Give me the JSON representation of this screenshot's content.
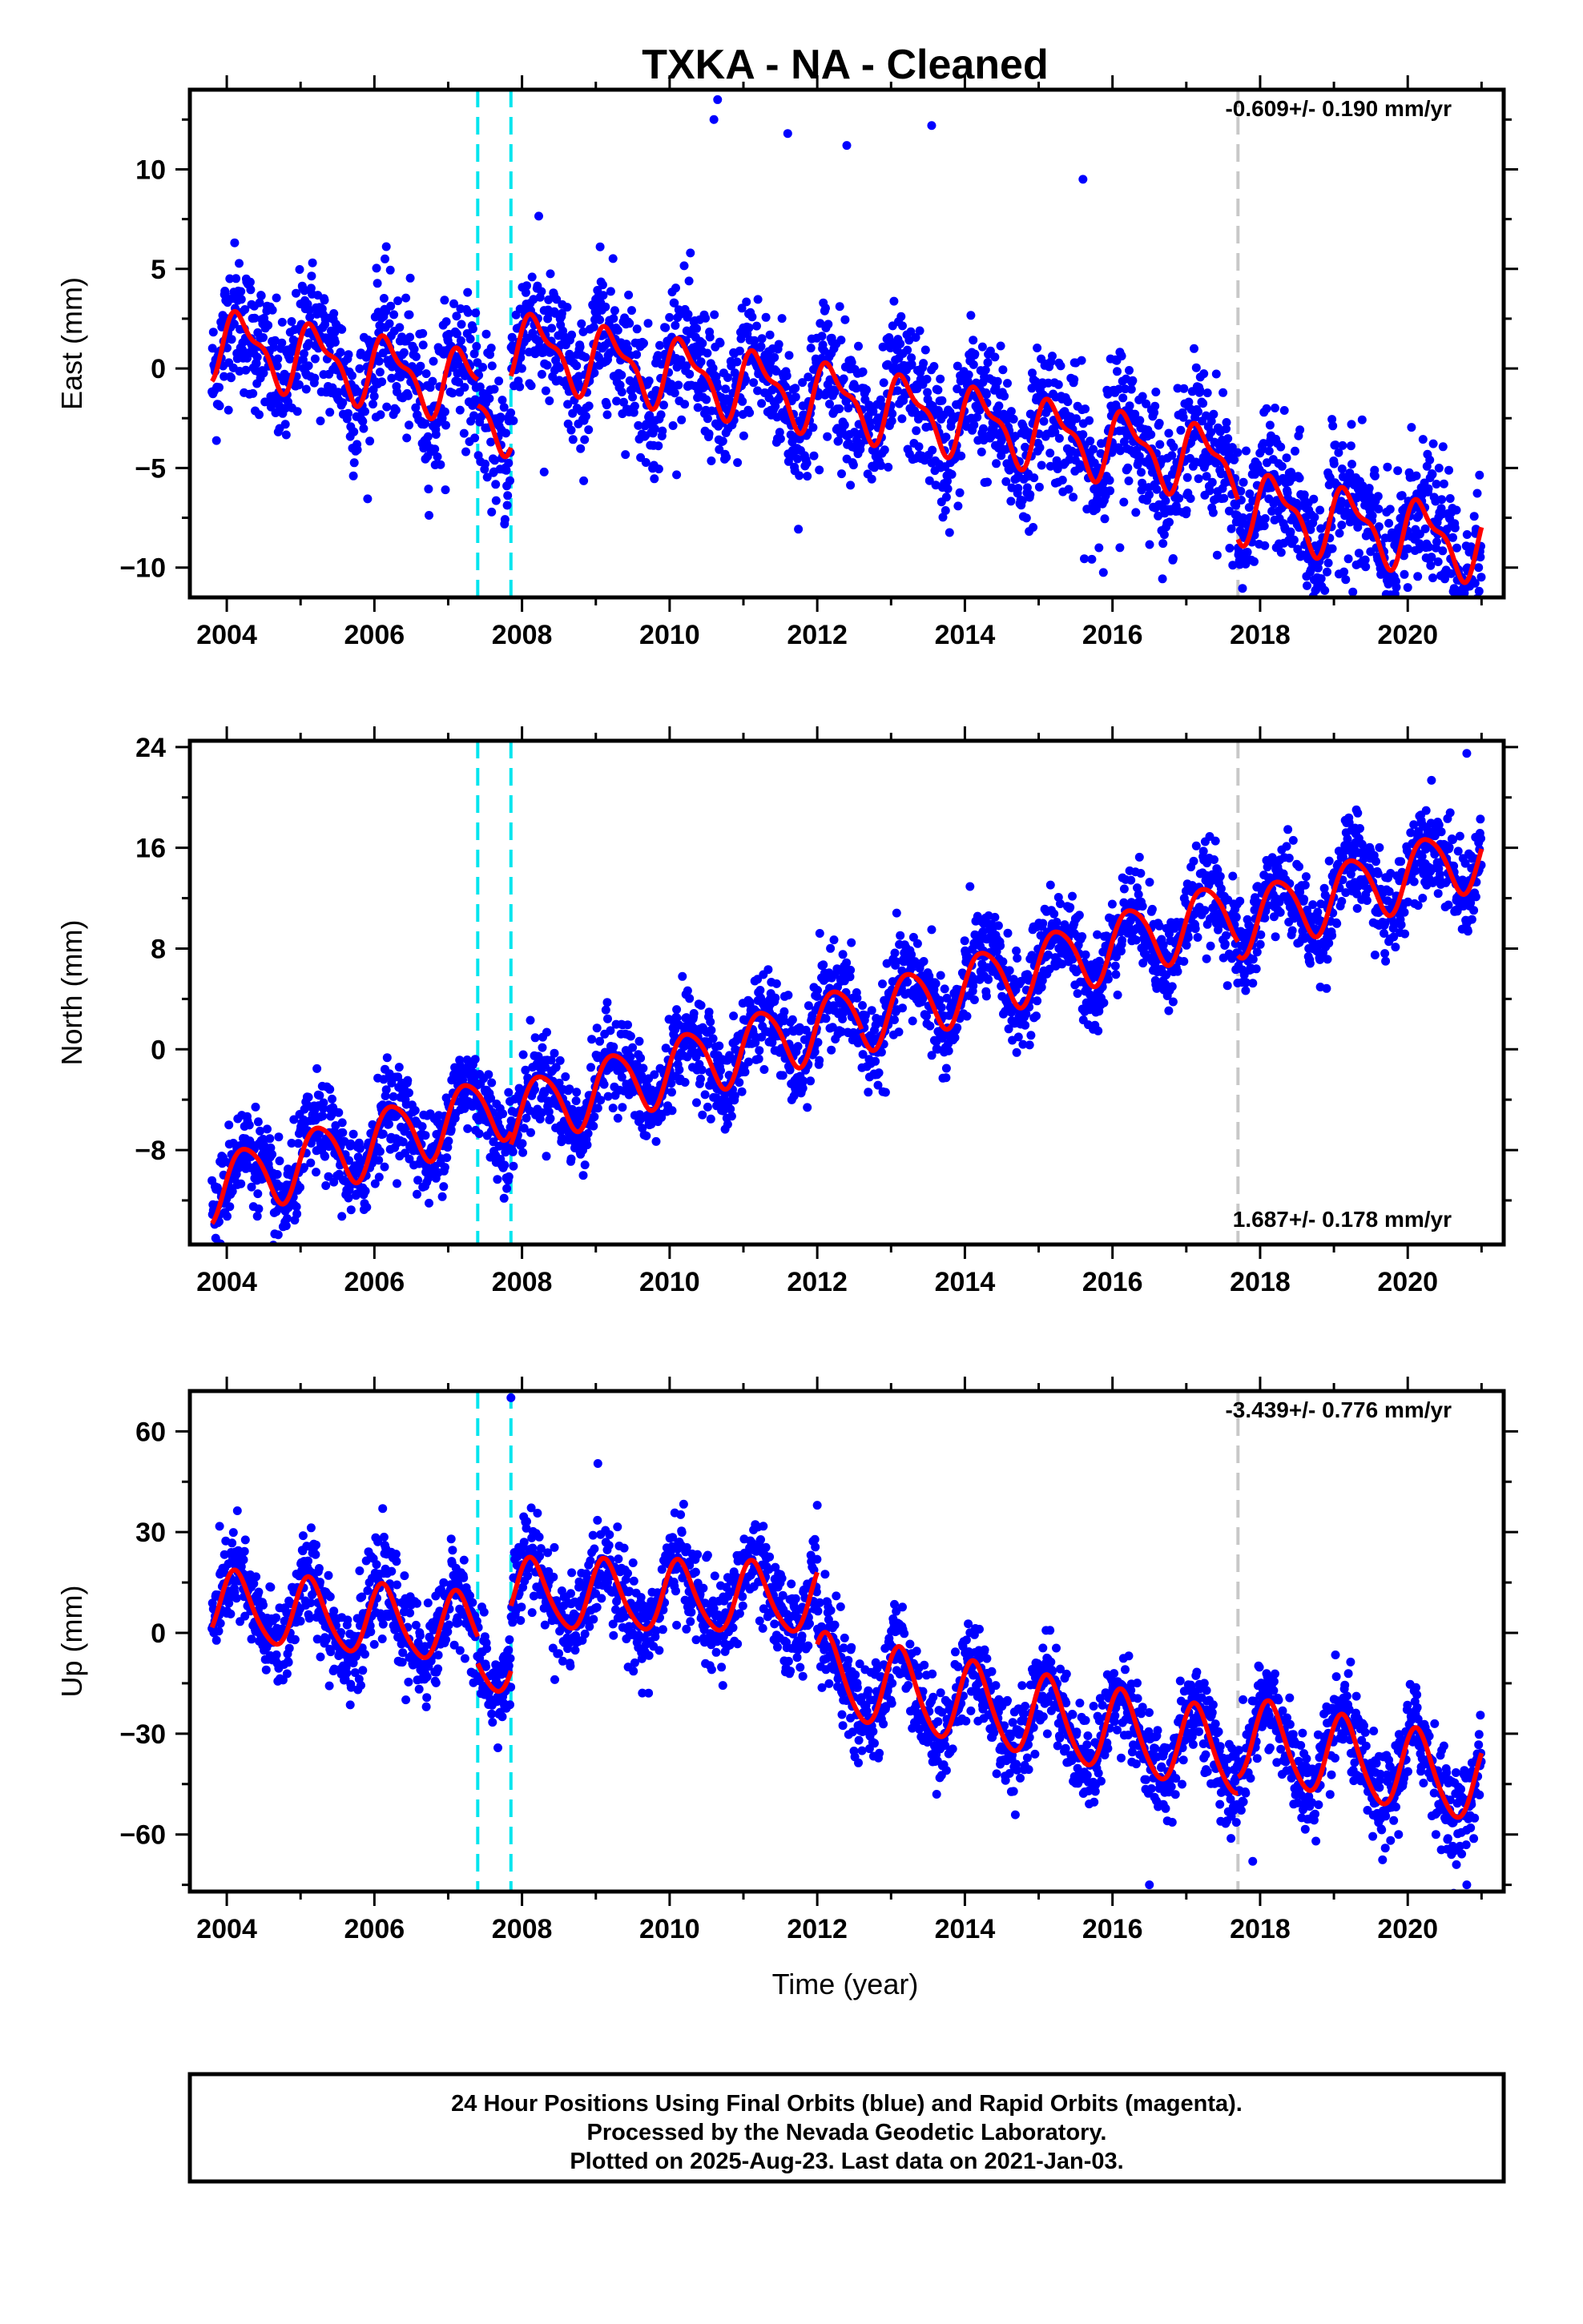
{
  "title": "TXKA  - NA - Cleaned",
  "xlabel": "Time (year)",
  "footer": {
    "line1": "24 Hour Positions Using Final Orbits (blue) and Rapid Orbits (magenta).",
    "line2": "Processed by the Nevada Geodetic Laboratory.",
    "line3": "Plotted on 2025-Aug-23. Last data on 2021-Jan-03."
  },
  "colors": {
    "points": "#0000ff",
    "model": "#ff0000",
    "equipment_change": "#00e5ee",
    "other_event": "#c8c8c8"
  },
  "chart_data": [
    {
      "type": "scatter",
      "name": "east",
      "ylabel": "East (mm)",
      "rate_text": "-0.609+/- 0.190 mm/yr",
      "xlim": [
        2003.5,
        2021.3
      ],
      "ylim": [
        -11.5,
        14
      ],
      "xticks": [
        2004,
        2006,
        2008,
        2010,
        2012,
        2014,
        2016,
        2018,
        2020
      ],
      "yticks": [
        -10,
        -5,
        0,
        5,
        10
      ],
      "event_lines": [
        {
          "x": 2007.4,
          "color": "equipment_change"
        },
        {
          "x": 2007.85,
          "color": "equipment_change"
        },
        {
          "x": 2017.7,
          "color": "other_event"
        }
      ],
      "data_start": 2003.8,
      "data_end": 2021.0,
      "model_segments": [
        {
          "x0": 2003.8,
          "x1": 2007.4,
          "offset": 1.3,
          "slope": -0.609,
          "ann_cos": 0.4,
          "ann_sin": 1.5,
          "semi_cos": 0.5,
          "semi_sin": 0.4
        },
        {
          "x0": 2007.4,
          "x1": 2007.85,
          "offset": 0.0,
          "slope": -0.609,
          "ann_cos": 0.4,
          "ann_sin": 1.5,
          "semi_cos": 0.5,
          "semi_sin": 0.4
        },
        {
          "x0": 2007.85,
          "x1": 2017.7,
          "offset": 3.6,
          "slope": -0.609,
          "ann_cos": 0.4,
          "ann_sin": 1.5,
          "semi_cos": 0.5,
          "semi_sin": 0.4
        },
        {
          "x0": 2017.7,
          "x1": 2021.0,
          "offset": 1.6,
          "slope": -0.609,
          "ann_cos": 0.4,
          "ann_sin": 1.5,
          "semi_cos": 0.5,
          "semi_sin": 0.4
        }
      ],
      "noise": 1.7,
      "outliers": [
        [
          2010.65,
          13.5
        ],
        [
          2010.6,
          12.5
        ],
        [
          2011.6,
          11.8
        ],
        [
          2012.4,
          11.2
        ],
        [
          2013.55,
          12.2
        ],
        [
          2015.6,
          9.5
        ],
        [
          2020.0,
          -11.0
        ],
        [
          2007.5,
          -4.8
        ],
        [
          2008.3,
          -5.2
        ],
        [
          2016.1,
          -9.0
        ]
      ]
    },
    {
      "type": "scatter",
      "name": "north",
      "ylabel": "North (mm)",
      "rate_text": "1.687+/- 0.178 mm/yr",
      "xlim": [
        2003.5,
        2021.3
      ],
      "ylim": [
        -15.5,
        24.5
      ],
      "xticks": [
        2004,
        2006,
        2008,
        2010,
        2012,
        2014,
        2016,
        2018,
        2020
      ],
      "yticks": [
        -8,
        0,
        8,
        16,
        24
      ],
      "event_lines": [
        {
          "x": 2007.4,
          "color": "equipment_change"
        },
        {
          "x": 2007.85,
          "color": "equipment_change"
        },
        {
          "x": 2017.7,
          "color": "other_event"
        }
      ],
      "data_start": 2003.8,
      "data_end": 2021.0,
      "model_segments": [
        {
          "x0": 2003.8,
          "x1": 2007.4,
          "offset": -11.0,
          "slope": 1.687,
          "ann_cos": 0.0,
          "ann_sin": 2.6,
          "semi_cos": 0.3,
          "semi_sin": 0.2
        },
        {
          "x0": 2007.4,
          "x1": 2007.85,
          "offset": -11.0,
          "slope": 1.687,
          "ann_cos": 0.0,
          "ann_sin": 2.6,
          "semi_cos": 0.3,
          "semi_sin": 0.2
        },
        {
          "x0": 2007.85,
          "x1": 2012.6,
          "offset": -12.0,
          "slope": 1.687,
          "ann_cos": 0.0,
          "ann_sin": 2.6,
          "semi_cos": 0.3,
          "semi_sin": 0.2
        },
        {
          "x0": 2012.6,
          "x1": 2017.7,
          "offset": -12.3,
          "slope": 1.687,
          "ann_cos": 0.0,
          "ann_sin": 2.6,
          "semi_cos": 0.3,
          "semi_sin": 0.2
        },
        {
          "x0": 2017.7,
          "x1": 2021.0,
          "offset": -13.4,
          "slope": 1.687,
          "ann_cos": 0.0,
          "ann_sin": 2.6,
          "semi_cos": 0.3,
          "semi_sin": 0.2
        }
      ],
      "noise": 1.8,
      "outliers": [
        [
          2003.85,
          -15.0
        ],
        [
          2020.8,
          23.5
        ],
        [
          2013.55,
          9.5
        ],
        [
          2019.7,
          7.0
        ]
      ]
    },
    {
      "type": "scatter",
      "name": "up",
      "ylabel": "Up (mm)",
      "rate_text": "-3.439+/- 0.776 mm/yr",
      "xlim": [
        2003.5,
        2021.3
      ],
      "ylim": [
        -77,
        72
      ],
      "xticks": [
        2004,
        2006,
        2008,
        2010,
        2012,
        2014,
        2016,
        2018,
        2020
      ],
      "yticks": [
        -60,
        -30,
        0,
        30,
        60
      ],
      "event_lines": [
        {
          "x": 2007.4,
          "color": "equipment_change"
        },
        {
          "x": 2007.85,
          "color": "equipment_change"
        },
        {
          "x": 2017.7,
          "color": "other_event"
        }
      ],
      "data_start": 2003.8,
      "data_end": 2021.0,
      "model_segments": [
        {
          "x0": 2003.8,
          "x1": 2007.4,
          "offset": 8.0,
          "slope": -2.0,
          "ann_cos": 7.0,
          "ann_sin": 7.5,
          "semi_cos": 1.0,
          "semi_sin": 1.0
        },
        {
          "x0": 2007.4,
          "x1": 2007.85,
          "offset": 0.0,
          "slope": -2.0,
          "ann_cos": 7.0,
          "ann_sin": 7.5,
          "semi_cos": 1.0,
          "semi_sin": 1.0
        },
        {
          "x0": 2007.85,
          "x1": 2012.0,
          "offset": 12.5,
          "slope": -0.3,
          "ann_cos": 7.0,
          "ann_sin": 7.5,
          "semi_cos": 1.0,
          "semi_sin": 1.0
        },
        {
          "x0": 2012.0,
          "x1": 2017.7,
          "offset": 22.0,
          "slope": -4.2,
          "ann_cos": 8.0,
          "ann_sin": 9.0,
          "semi_cos": 1.0,
          "semi_sin": 1.0
        },
        {
          "x0": 2017.7,
          "x1": 2021.0,
          "offset": 24.0,
          "slope": -4.0,
          "ann_cos": 8.0,
          "ann_sin": 9.0,
          "semi_cos": 1.0,
          "semi_sin": 1.0
        }
      ],
      "noise": 7.0,
      "outliers": [
        [
          2007.85,
          70.0
        ],
        [
          2016.5,
          -75.0
        ],
        [
          2012.0,
          38.0
        ],
        [
          2020.8,
          -75.0
        ],
        [
          2017.9,
          -68.0
        ]
      ]
    }
  ]
}
